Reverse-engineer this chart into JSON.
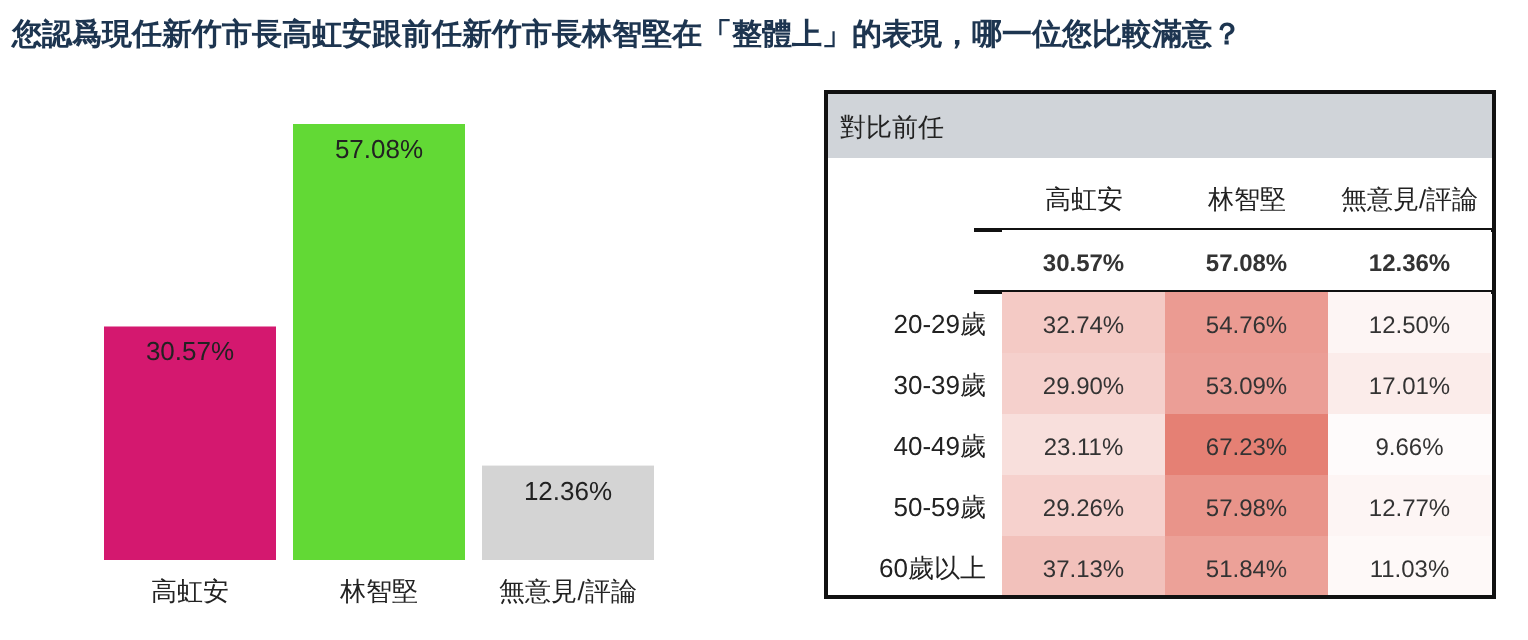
{
  "chart_data": [
    {
      "type": "bar",
      "title": "您認爲現任新竹市長高虹安跟前任新竹市長林智堅在「整體上」的表現，哪一位您比較滿意？",
      "categories": [
        "高虹安",
        "林智堅",
        "無意見/評論"
      ],
      "values": [
        30.57,
        57.08,
        12.36
      ],
      "colors": [
        "#d4186f",
        "#62d935",
        "#d4d4d4"
      ],
      "value_labels": [
        "30.57%",
        "57.08%",
        "12.36%"
      ]
    },
    {
      "type": "heatmap",
      "title": "對比前任",
      "categories": [
        "高虹安",
        "林智堅",
        "無意見/評論"
      ],
      "y_categories": [
        null,
        "20-29歲",
        "30-39歲",
        "40-49歲",
        "50-59歲",
        "60歲以上"
      ],
      "cells": [
        [
          30.57,
          57.08,
          12.36
        ],
        [
          32.74,
          54.76,
          12.5
        ],
        [
          29.9,
          53.09,
          17.01
        ],
        [
          23.11,
          67.23,
          9.66
        ],
        [
          29.26,
          57.98,
          12.77
        ],
        [
          37.13,
          51.84,
          11.03
        ]
      ],
      "cell_labels": [
        [
          "30.57%",
          "57.08%",
          "12.36%"
        ],
        [
          "32.74%",
          "54.76%",
          "12.50%"
        ],
        [
          "29.90%",
          "53.09%",
          "17.01%"
        ],
        [
          "23.11%",
          "67.23%",
          "9.66%"
        ],
        [
          "29.26%",
          "57.98%",
          "12.77%"
        ],
        [
          "37.13%",
          "51.84%",
          "11.03%"
        ]
      ]
    }
  ]
}
